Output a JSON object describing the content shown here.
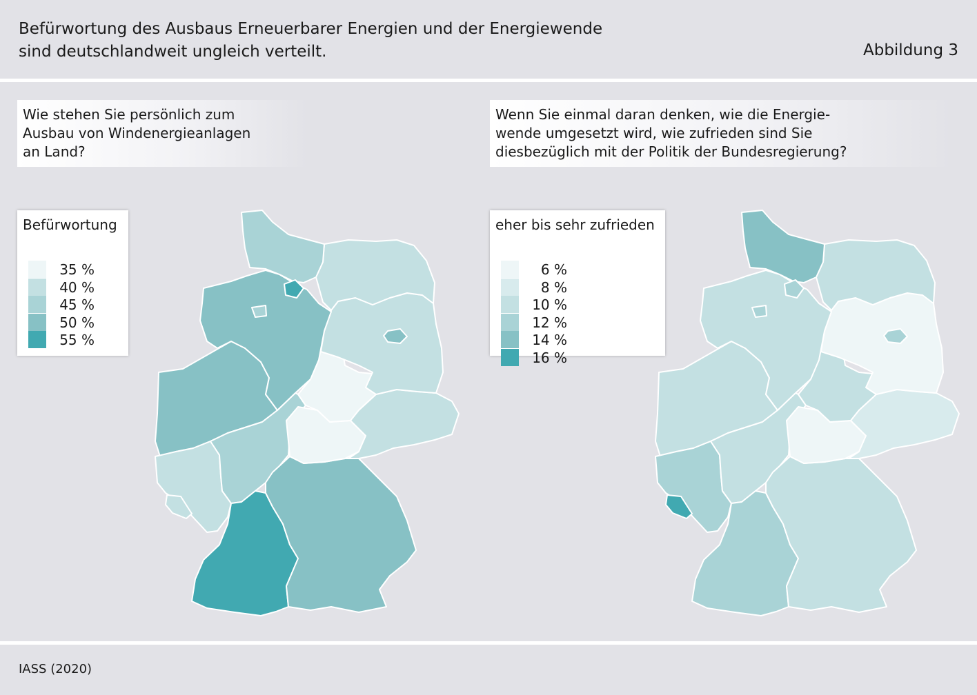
{
  "header": {
    "title_line1": "Befürwortung des Ausbaus Erneuerbarer Energien und der Energiewende",
    "title_line2": "sind deutschlandweit ungleich verteilt.",
    "figure_label": "Abbildung 3"
  },
  "left": {
    "question_lines": [
      "Wie stehen Sie persönlich zum",
      "Ausbau von Windenergieanlagen",
      "an Land?"
    ],
    "legend_title": "Befürwortung",
    "legend": [
      {
        "label": "35 %",
        "color": "#eef6f7"
      },
      {
        "label": "40 %",
        "color": "#c3e0e2"
      },
      {
        "label": "45 %",
        "color": "#a9d3d6"
      },
      {
        "label": "50 %",
        "color": "#87c1c5"
      },
      {
        "label": "55 %",
        "color": "#41a9b1"
      }
    ],
    "states": {
      "SH": "#a9d3d6",
      "HH": "#41a9b1",
      "NI": "#87c1c5",
      "HB": "#a9d3d6",
      "MV": "#c3e0e2",
      "BB": "#c3e0e2",
      "BE": "#87c1c5",
      "ST": "#eef6f7",
      "NW": "#87c1c5",
      "HE": "#a9d3d6",
      "TH": "#eef6f7",
      "SN": "#c3e0e2",
      "RP": "#c3e0e2",
      "SL": "#c3e0e2",
      "BW": "#41a9b1",
      "BY": "#87c1c5"
    }
  },
  "right": {
    "question_lines": [
      "Wenn Sie einmal daran denken, wie die Energie-",
      "wende umgesetzt wird, wie zufrieden sind Sie",
      "diesbezüglich mit der Politik der Bundesregierung?"
    ],
    "legend_title": "eher bis sehr zufrieden",
    "legend": [
      {
        "label": "6 %",
        "color": "#eef6f7"
      },
      {
        "label": "8 %",
        "color": "#d8ebed"
      },
      {
        "label": "10 %",
        "color": "#c3e0e2"
      },
      {
        "label": "12 %",
        "color": "#a9d3d6"
      },
      {
        "label": "14 %",
        "color": "#87c1c5"
      },
      {
        "label": "16 %",
        "color": "#41a9b1"
      }
    ],
    "states": {
      "SH": "#87c1c5",
      "HH": "#a9d3d6",
      "NI": "#c3e0e2",
      "HB": "#a9d3d6",
      "MV": "#c3e0e2",
      "BB": "#eef6f7",
      "BE": "#a9d3d6",
      "ST": "#c3e0e2",
      "NW": "#c3e0e2",
      "HE": "#c3e0e2",
      "TH": "#eef6f7",
      "SN": "#d8ebed",
      "RP": "#a9d3d6",
      "SL": "#41a9b1",
      "BW": "#a9d3d6",
      "BY": "#c3e0e2"
    }
  },
  "source": "IASS (2020)"
}
